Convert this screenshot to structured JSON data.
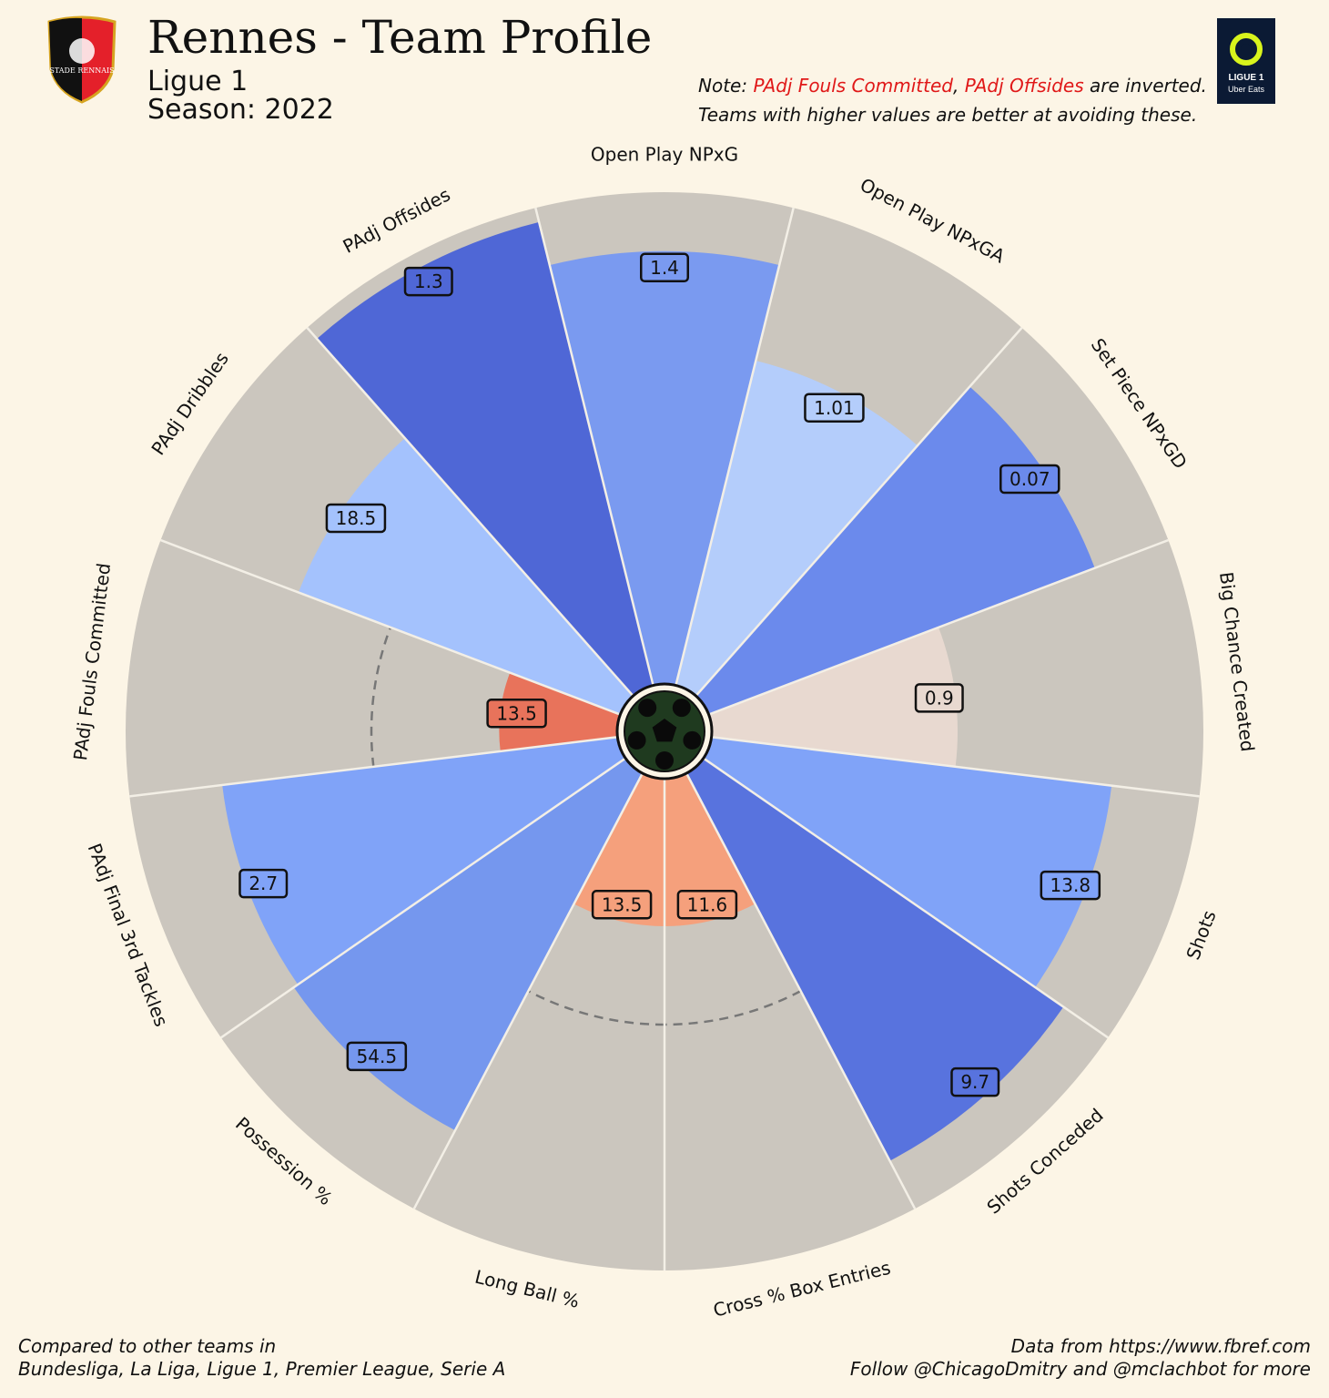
{
  "header": {
    "title": "Rennes - Team Profile",
    "league": "Ligue 1",
    "season": "Season: 2022",
    "club_badge_text": "STADE RENNAIS",
    "league_logo_text": "LIGUE 1",
    "league_logo_sponsor": "Uber Eats"
  },
  "note": {
    "line1_prefix": "Note: ",
    "inverted1": "PAdj Fouls Committed",
    "comma": ", ",
    "inverted2": "PAdj Offsides",
    "line1_suffix": " are inverted.",
    "line2": "Teams with higher values are better at avoiding these."
  },
  "footer": {
    "left1": "Compared to other teams in",
    "left2": "Bundesliga, La Liga, Ligue 1, Premier League, Serie A",
    "right1": "Data from https://www.fbref.com",
    "right2": "Follow @ChicagoDmitry and @mclachbot for more"
  },
  "colors": {
    "background": "#fcf5e6",
    "slice_background": "#cbc6be",
    "dark_blue": "#4f67d6",
    "blue": "#7a9af0",
    "light_blue": "#b4cdfb",
    "near_white": "#e8d9d0",
    "orange": "#f5a07c",
    "red_orange": "#e8735b"
  },
  "chart_data": {
    "type": "pizza",
    "percentile_max": 100,
    "reference_circle_percentile": 50,
    "series": [
      {
        "param": "Open Play NPxG",
        "value": "1.4",
        "percentile": 88,
        "color": "#7a9af0"
      },
      {
        "param": "Open Play NPxGA",
        "value": "1.01",
        "percentile": 68,
        "color": "#b4cdfb"
      },
      {
        "param": "Set Piece NPxGD",
        "value": "0.07",
        "percentile": 84,
        "color": "#6b8aec"
      },
      {
        "param": "Big Chance Created",
        "value": "0.9",
        "percentile": 50,
        "color": "#e8d9d0"
      },
      {
        "param": "Shots",
        "value": "13.8",
        "percentile": 82,
        "color": "#80a3f8"
      },
      {
        "param": "Shots Conceded",
        "value": "9.7",
        "percentile": 89,
        "color": "#5873de"
      },
      {
        "param": "Cross % Box Entries",
        "value": "11.6",
        "percentile": 30,
        "color": "#f5a07c"
      },
      {
        "param": "Long Ball %",
        "value": "13.5",
        "percentile": 30,
        "color": "#f5a07c"
      },
      {
        "param": "Possession %",
        "value": "54.5",
        "percentile": 82,
        "color": "#7597ee"
      },
      {
        "param": "PAdj Final 3rd Tackles",
        "value": "2.7",
        "percentile": 81,
        "color": "#80a3f8"
      },
      {
        "param": "PAdj Fouls Committed",
        "value": "13.5",
        "percentile": 24,
        "color": "#e8735b"
      },
      {
        "param": "PAdj Dribbles",
        "value": "18.5",
        "percentile": 70,
        "color": "#a4c2fd"
      },
      {
        "param": "PAdj Offsides",
        "value": "1.3",
        "percentile": 97,
        "color": "#4f67d6"
      }
    ]
  }
}
